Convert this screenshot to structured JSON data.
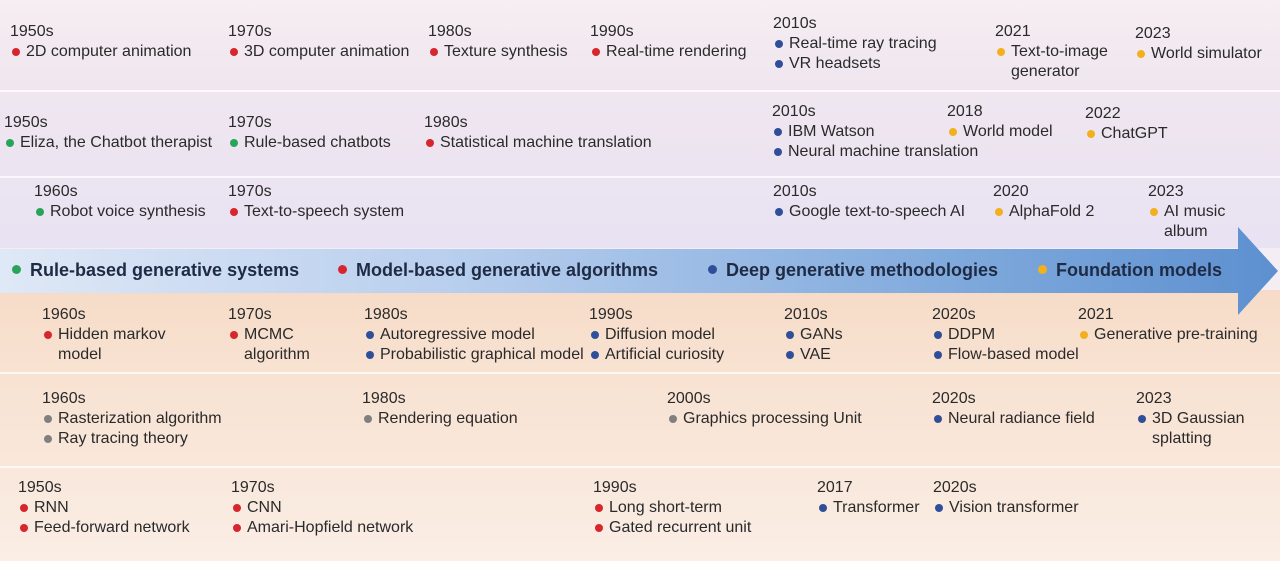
{
  "colors": {
    "red": "#d8262e",
    "blue": "#2f4f9a",
    "yellow": "#f2b01e",
    "green": "#2aa35a",
    "gray": "#808080",
    "arrow": "#6a9ad3"
  },
  "categories": [
    {
      "label": "Rule-based generative systems",
      "color": "green"
    },
    {
      "label": "Model-based generative algorithms",
      "color": "red"
    },
    {
      "label": "Deep generative methodologies",
      "color": "blue"
    },
    {
      "label": "Foundation models",
      "color": "yellow"
    }
  ],
  "rows": {
    "graphics_top": [
      {
        "year": "1950s",
        "entries": [
          {
            "text": "2D computer animation",
            "color": "red"
          }
        ]
      },
      {
        "year": "1970s",
        "entries": [
          {
            "text": "3D computer animation",
            "color": "red"
          }
        ]
      },
      {
        "year": "1980s",
        "entries": [
          {
            "text": "Texture synthesis",
            "color": "red"
          }
        ]
      },
      {
        "year": "1990s",
        "entries": [
          {
            "text": "Real-time rendering",
            "color": "red"
          }
        ]
      },
      {
        "year": "2010s",
        "entries": [
          {
            "text": "Real-time ray tracing",
            "color": "blue"
          },
          {
            "text": "VR headsets",
            "color": "blue"
          }
        ]
      },
      {
        "year": "2021",
        "entries": [
          {
            "text": "Text-to-image",
            "color": "yellow"
          },
          {
            "text": "generator",
            "color": ""
          }
        ]
      },
      {
        "year": "2023",
        "entries": [
          {
            "text": "World simulator",
            "color": "yellow"
          }
        ]
      }
    ],
    "language_top": [
      {
        "year": "1950s",
        "entries": [
          {
            "text": "Eliza, the Chatbot therapist",
            "color": "green"
          }
        ]
      },
      {
        "year": "1970s",
        "entries": [
          {
            "text": "Rule-based chatbots",
            "color": "green"
          }
        ]
      },
      {
        "year": "1980s",
        "entries": [
          {
            "text": "Statistical machine translation",
            "color": "red"
          }
        ]
      },
      {
        "year": "2010s",
        "entries": [
          {
            "text": "IBM Watson",
            "color": "blue"
          },
          {
            "text": "Neural machine translation",
            "color": "blue"
          }
        ]
      },
      {
        "year": "2018",
        "entries": [
          {
            "text": "World model",
            "color": "yellow"
          }
        ]
      },
      {
        "year": "2022",
        "entries": [
          {
            "text": "ChatGPT",
            "color": "yellow"
          }
        ]
      }
    ],
    "speech_top": [
      {
        "year": "1960s",
        "entries": [
          {
            "text": "Robot voice synthesis",
            "color": "green"
          }
        ]
      },
      {
        "year": "1970s",
        "entries": [
          {
            "text": "Text-to-speech system",
            "color": "red"
          }
        ]
      },
      {
        "year": "2010s",
        "entries": [
          {
            "text": "Google text-to-speech AI",
            "color": "blue"
          }
        ]
      },
      {
        "year": "2020",
        "entries": [
          {
            "text": "AlphaFold 2",
            "color": "yellow"
          }
        ]
      },
      {
        "year": "2023",
        "entries": [
          {
            "text": "AI music",
            "color": "yellow"
          },
          {
            "text": "album",
            "color": ""
          }
        ]
      }
    ],
    "models_bottom": [
      {
        "year": "1960s",
        "entries": [
          {
            "text": "Hidden markov",
            "color": "red"
          },
          {
            "text": "model",
            "color": ""
          }
        ]
      },
      {
        "year": "1970s",
        "entries": [
          {
            "text": "MCMC",
            "color": "red"
          },
          {
            "text": "algorithm",
            "color": ""
          }
        ]
      },
      {
        "year": "1980s",
        "entries": [
          {
            "text": "Autoregressive model",
            "color": "blue"
          },
          {
            "text": "Probabilistic graphical model",
            "color": "blue"
          }
        ]
      },
      {
        "year": "1990s",
        "entries": [
          {
            "text": "Diffusion  model",
            "color": "blue"
          },
          {
            "text": "Artificial curiosity",
            "color": "blue"
          }
        ]
      },
      {
        "year": "2010s",
        "entries": [
          {
            "text": "GANs",
            "color": "blue"
          },
          {
            "text": "VAE",
            "color": "blue"
          }
        ]
      },
      {
        "year": "2020s",
        "entries": [
          {
            "text": "DDPM",
            "color": "blue"
          },
          {
            "text": "Flow-based model",
            "color": "blue"
          }
        ]
      },
      {
        "year": "2021",
        "entries": [
          {
            "text": "Generative pre-training",
            "color": "yellow"
          }
        ]
      }
    ],
    "rendering_bottom": [
      {
        "year": "1960s",
        "entries": [
          {
            "text": "Rasterization algorithm",
            "color": "gray"
          },
          {
            "text": "Ray tracing theory",
            "color": "gray"
          }
        ]
      },
      {
        "year": "1980s",
        "entries": [
          {
            "text": "Rendering equation",
            "color": "gray"
          }
        ]
      },
      {
        "year": "2000s",
        "entries": [
          {
            "text": "Graphics processing Unit",
            "color": "gray"
          }
        ]
      },
      {
        "year": "2020s",
        "entries": [
          {
            "text": "Neural radiance field",
            "color": "blue"
          }
        ]
      },
      {
        "year": "2023",
        "entries": [
          {
            "text": "3D Gaussian",
            "color": "blue"
          },
          {
            "text": "splatting",
            "color": ""
          }
        ]
      }
    ],
    "networks_bottom": [
      {
        "year": "1950s",
        "entries": [
          {
            "text": "RNN",
            "color": "red"
          },
          {
            "text": "Feed-forward network",
            "color": "red"
          }
        ]
      },
      {
        "year": "1970s",
        "entries": [
          {
            "text": "CNN",
            "color": "red"
          },
          {
            "text": "Amari-Hopfield network",
            "color": "red"
          }
        ]
      },
      {
        "year": "1990s",
        "entries": [
          {
            "text": "Long short-term",
            "color": "red"
          },
          {
            "text": "Gated recurrent unit",
            "color": "red"
          }
        ]
      },
      {
        "year": "2017",
        "entries": [
          {
            "text": "Transformer",
            "color": "blue"
          }
        ]
      },
      {
        "year": "2020s",
        "entries": [
          {
            "text": "Vision transformer",
            "color": "blue"
          }
        ]
      }
    ]
  }
}
